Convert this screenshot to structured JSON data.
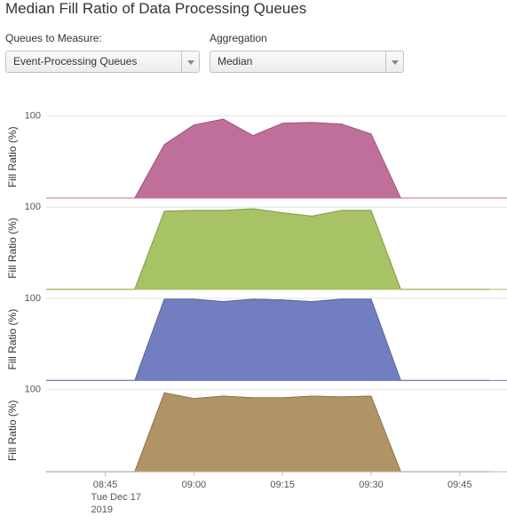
{
  "header": {
    "title": "Median Fill Ratio of Data Processing Queues"
  },
  "controls": [
    {
      "label": "Queues to Measure:",
      "value": "Event-Processing Queues"
    },
    {
      "label": "Aggregation",
      "value": "Median"
    }
  ],
  "chart_data": [
    {
      "type": "area",
      "y_label": "Fill Ratio (%)",
      "color": "#c06f9b",
      "x": [
        "08:35",
        "08:40",
        "08:45",
        "08:50",
        "08:55",
        "09:00",
        "09:05",
        "09:10",
        "09:15",
        "09:20",
        "09:25",
        "09:30",
        "09:35",
        "09:40",
        "09:45",
        "09:50"
      ],
      "values": [
        0,
        0,
        0,
        0,
        65,
        89,
        96,
        76,
        91,
        92,
        90,
        78,
        0,
        0,
        0,
        0
      ],
      "xlim": [
        "08:35",
        "09:53"
      ],
      "ylim": [
        0,
        100
      ],
      "yticks": [
        100
      ],
      "grid": true
    },
    {
      "type": "area",
      "y_label": "Fill Ratio (%)",
      "color": "#a8c266",
      "x": [
        "08:35",
        "08:40",
        "08:45",
        "08:50",
        "08:55",
        "09:00",
        "09:05",
        "09:10",
        "09:15",
        "09:20",
        "09:25",
        "09:30",
        "09:35",
        "09:40",
        "09:45",
        "09:50"
      ],
      "values": [
        0,
        0,
        0,
        0,
        95,
        96,
        96,
        98,
        93,
        89,
        96,
        96,
        0,
        0,
        0,
        0
      ],
      "xlim": [
        "08:35",
        "09:53"
      ],
      "ylim": [
        0,
        100
      ],
      "yticks": [
        100
      ],
      "grid": true
    },
    {
      "type": "area",
      "y_label": "Fill Ratio (%)",
      "color": "#717fc0",
      "x": [
        "08:35",
        "08:40",
        "08:45",
        "08:50",
        "08:55",
        "09:00",
        "09:05",
        "09:10",
        "09:15",
        "09:20",
        "09:25",
        "09:30",
        "09:35",
        "09:40",
        "09:45",
        "09:50"
      ],
      "values": [
        0,
        0,
        0,
        0,
        99,
        99,
        96,
        99,
        98,
        96,
        99,
        99,
        0,
        0,
        0,
        0
      ],
      "xlim": [
        "08:35",
        "09:53"
      ],
      "ylim": [
        0,
        100
      ],
      "yticks": [
        100
      ],
      "grid": true
    },
    {
      "type": "area",
      "y_label": "Fill Ratio (%)",
      "color": "#b09465",
      "x": [
        "08:35",
        "08:40",
        "08:45",
        "08:50",
        "08:55",
        "09:00",
        "09:05",
        "09:10",
        "09:15",
        "09:20",
        "09:25",
        "09:30",
        "09:35",
        "09:40",
        "09:45",
        "09:50"
      ],
      "values": [
        0,
        0,
        0,
        0,
        96,
        89,
        92,
        90,
        90,
        92,
        91,
        92,
        0,
        0,
        0,
        0
      ],
      "xlim": [
        "08:35",
        "09:53"
      ],
      "ylim": [
        0,
        100
      ],
      "yticks": [
        100
      ],
      "grid": true,
      "xticks": [
        "08:45",
        "09:00",
        "09:15",
        "09:30",
        "09:45"
      ],
      "xtick_sublabel": [
        "Tue Dec 17",
        "2019"
      ]
    }
  ]
}
